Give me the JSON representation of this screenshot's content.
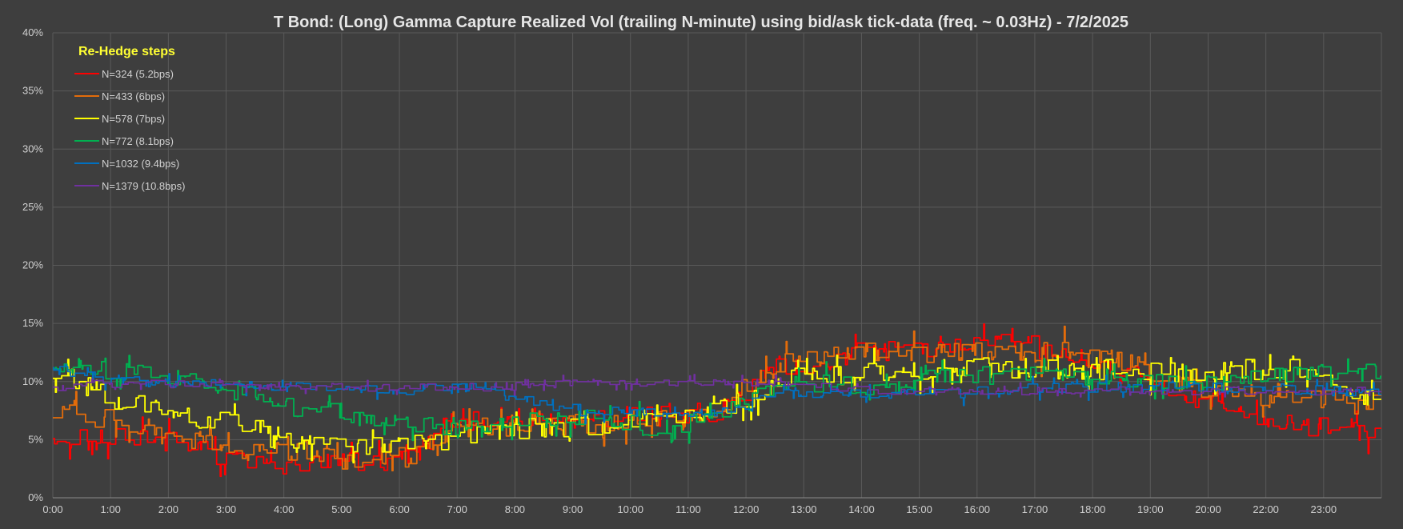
{
  "chart_data": {
    "type": "line",
    "title": "T Bond: (Long) Gamma Capture Realized Vol (trailing N-minute) using bid/ask tick-data (freq. ~ 0.03Hz) - 7/2/2025",
    "xlabel": "",
    "ylabel": "",
    "x_ticks": [
      "0:00",
      "1:00",
      "2:00",
      "3:00",
      "4:00",
      "5:00",
      "6:00",
      "7:00",
      "8:00",
      "9:00",
      "10:00",
      "11:00",
      "12:00",
      "13:00",
      "14:00",
      "15:00",
      "16:00",
      "17:00",
      "18:00",
      "19:00",
      "20:00",
      "22:00",
      "23:00"
    ],
    "y_ticks": [
      "0%",
      "5%",
      "10%",
      "15%",
      "20%",
      "25%",
      "30%",
      "35%",
      "40%"
    ],
    "xlim": [
      0,
      24
    ],
    "ylim": [
      0,
      40
    ],
    "grid": true,
    "legend": {
      "title": "Re-Hedge steps",
      "placement": "top-left"
    },
    "x": [
      0,
      0.5,
      1,
      1.5,
      2,
      2.5,
      3,
      3.5,
      4,
      4.5,
      5,
      5.5,
      6,
      6.5,
      7,
      7.5,
      8,
      8.5,
      9,
      9.5,
      10,
      10.5,
      11,
      11.5,
      12,
      12.5,
      13,
      13.5,
      14,
      14.5,
      15,
      15.5,
      16,
      16.5,
      17,
      17.5,
      18,
      18.5,
      19,
      19.5,
      20,
      20.5,
      21,
      21.5,
      22,
      22.5,
      23,
      23.5,
      24
    ],
    "series": [
      {
        "name": "N=324 (5.2bps)",
        "color": "#ff0000",
        "values": [
          5.5,
          5.3,
          5.2,
          5.3,
          4.8,
          4.2,
          3.5,
          2.8,
          2.8,
          2.8,
          3,
          3,
          3,
          3.5,
          6,
          6.5,
          6.5,
          6.7,
          6.8,
          6.8,
          6.8,
          7,
          7.2,
          7.3,
          7.5,
          9,
          11,
          11.5,
          12,
          12.5,
          12.5,
          12.8,
          13,
          13,
          13.2,
          13.5,
          12.5,
          11.5,
          11,
          10.5,
          9.5,
          8.5,
          8.5,
          7.5,
          6.5,
          6.2,
          6,
          6,
          6
        ]
      },
      {
        "name": "N=433 (6bps)",
        "color": "#e36c0a",
        "values": [
          7.2,
          7,
          6.8,
          6.2,
          5.2,
          4.8,
          4.5,
          3.8,
          4,
          4,
          3.5,
          3,
          3.5,
          3.5,
          5.5,
          6,
          6,
          6.2,
          6.3,
          6.3,
          6.5,
          6.8,
          7,
          7.2,
          7.5,
          9.5,
          11.5,
          11.8,
          12,
          12.5,
          12.5,
          12.5,
          12.5,
          12.5,
          12.5,
          12.5,
          12.5,
          12.5,
          12,
          11.5,
          10.5,
          9.5,
          9,
          8.5,
          8.5,
          8.5,
          8.5,
          8,
          8
        ]
      },
      {
        "name": "N=578 (7bps)",
        "color": "#ffff00",
        "values": [
          10.5,
          10,
          8.5,
          8,
          7.5,
          6.8,
          6.5,
          6.2,
          5,
          4.5,
          4.5,
          4.5,
          4.5,
          4.5,
          5,
          5.5,
          5.8,
          6,
          6,
          6,
          6.2,
          6.5,
          6.5,
          6.8,
          7.5,
          8.5,
          10,
          10.5,
          10.5,
          10.5,
          11,
          11,
          11.2,
          11.5,
          11.5,
          11,
          11,
          11,
          11,
          11,
          10.8,
          10.8,
          10.8,
          11,
          11,
          11,
          10,
          9,
          8
        ]
      },
      {
        "name": "N=772 (8.1bps)",
        "color": "#00b050",
        "values": [
          11.2,
          11.2,
          11,
          10.8,
          10.5,
          10,
          9.5,
          9,
          8,
          7.5,
          7.5,
          6.5,
          6.5,
          6.5,
          6,
          6,
          6.5,
          6.8,
          6.8,
          6.8,
          6.5,
          6.3,
          6,
          6.5,
          7.2,
          8,
          9.5,
          9.8,
          9.8,
          9.5,
          9.5,
          10,
          10.5,
          10.5,
          10.5,
          10.5,
          10.5,
          10.5,
          10.5,
          10.2,
          10,
          10,
          10,
          10.5,
          10.5,
          10.5,
          11,
          11,
          11
        ]
      },
      {
        "name": "N=1032 (9.4bps)",
        "color": "#0070c0",
        "values": [
          11,
          10.5,
          10.2,
          10,
          9.8,
          9.8,
          9.8,
          9.8,
          9.5,
          9.5,
          9.5,
          9.5,
          9.2,
          9.2,
          9.5,
          9.5,
          9,
          8.5,
          8,
          7.5,
          7.5,
          7.5,
          7,
          7,
          7.5,
          8,
          9,
          9,
          9,
          9,
          9,
          9,
          9,
          9,
          9.2,
          9.5,
          9.5,
          9.5,
          9.5,
          9.5,
          9.5,
          9.5,
          9.5,
          9.5,
          9.5,
          9.3,
          9.2,
          9.2,
          9.2
        ]
      },
      {
        "name": "N=1379 (10.8bps)",
        "color": "#7030a0",
        "values": [
          9.5,
          9.7,
          9.8,
          9.8,
          9.8,
          9.8,
          9.8,
          9.7,
          9.5,
          9.5,
          9.5,
          9.5,
          9.5,
          9.5,
          9.5,
          9.5,
          9.5,
          9.6,
          9.7,
          9.8,
          9.8,
          9.8,
          9.8,
          9.8,
          9.8,
          9.8,
          9.8,
          9.5,
          9.5,
          9.3,
          9.2,
          9.2,
          9.2,
          9.2,
          9.2,
          9.2,
          9.2,
          9.2,
          9.2,
          9.2,
          9.2,
          9.2,
          9.2,
          9.2,
          9.2,
          9.2,
          9.2,
          9.2,
          9.2
        ]
      }
    ]
  }
}
